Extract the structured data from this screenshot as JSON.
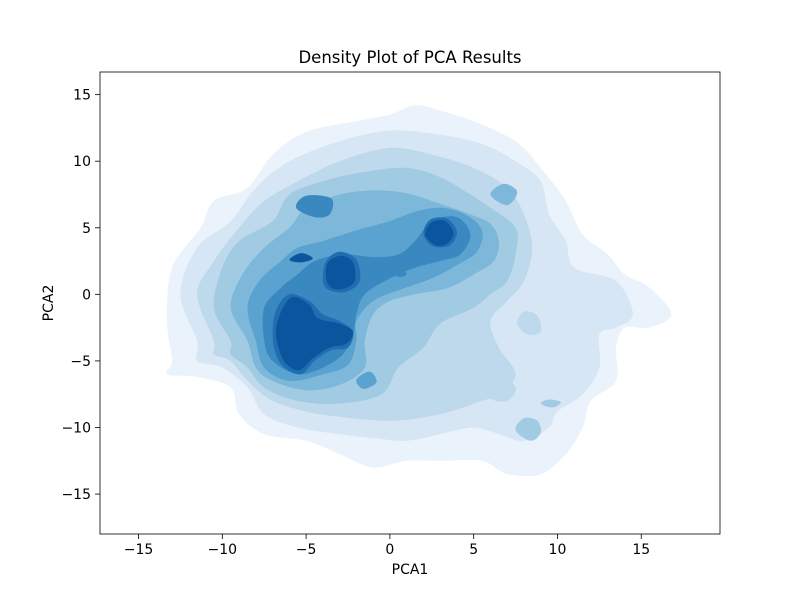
{
  "chart_data": {
    "type": "density-contour",
    "title": "Density Plot of PCA Results",
    "xlabel": "PCA1",
    "ylabel": "PCA2",
    "xlim": [
      -17.3,
      19.7
    ],
    "ylim": [
      -18.0,
      16.7
    ],
    "xticks": [
      -15,
      -10,
      -5,
      0,
      5,
      10,
      15
    ],
    "yticks": [
      15,
      10,
      5,
      0,
      -5,
      -10,
      -15
    ],
    "xtick_labels": [
      "−15",
      "−10",
      "−5",
      "0",
      "5",
      "10",
      "15"
    ],
    "ytick_labels": [
      "15",
      "10",
      "5",
      "0",
      "−5",
      "−10",
      "−15"
    ],
    "grid": false,
    "colormap": "Blues",
    "level_colors": [
      "#eaf2fb",
      "#d6e6f4",
      "#bed8ec",
      "#a0cbe2",
      "#7db8da",
      "#5aa2cf",
      "#3a88c0",
      "#1f6eb2",
      "#0b559f"
    ],
    "modes": [
      {
        "x": -5.5,
        "y": -3.2,
        "level": 9
      },
      {
        "x": -3.0,
        "y": 1.5,
        "level": 9
      },
      {
        "x": 2.8,
        "y": 4.5,
        "level": 9
      },
      {
        "x": -5.3,
        "y": 2.8,
        "level": 8
      },
      {
        "x": 0.5,
        "y": 1.8,
        "level": 8
      },
      {
        "x": 9.5,
        "y": -8.2,
        "level": 2
      },
      {
        "x": 8.0,
        "y": -10.3,
        "level": 2
      },
      {
        "x": 8.2,
        "y": -2.4,
        "level": 1
      }
    ]
  }
}
